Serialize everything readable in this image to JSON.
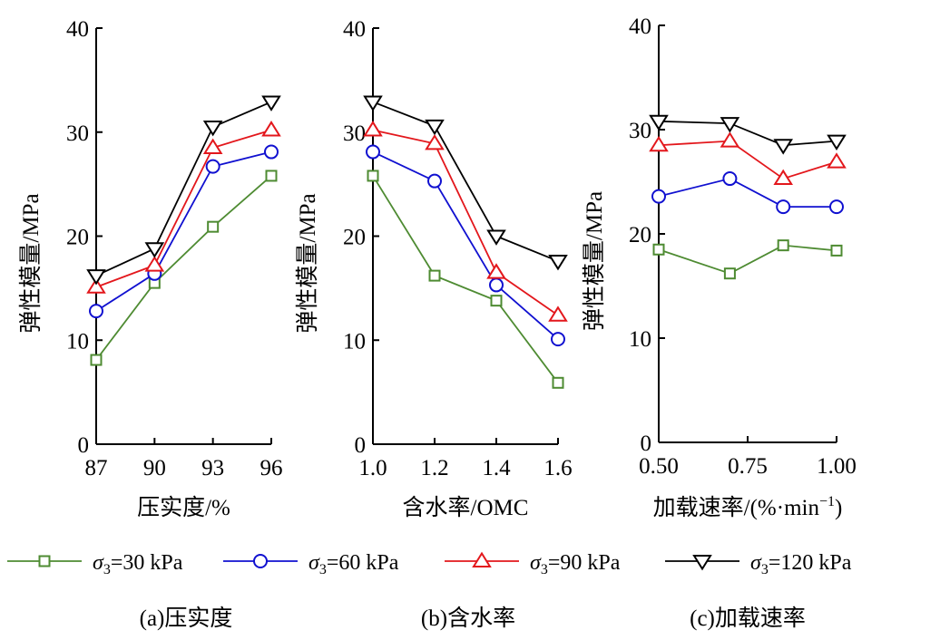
{
  "legend": [
    {
      "name": "σ3=30 kPa",
      "sym": "σ",
      "sub": "3",
      "rest": "=30 kPa",
      "color": "#4e8b32",
      "marker": "square"
    },
    {
      "name": "σ3=60 kPa",
      "sym": "σ",
      "sub": "3",
      "rest": "=60 kPa",
      "color": "#1010d0",
      "marker": "circle"
    },
    {
      "name": "σ3=90 kPa",
      "sym": "σ",
      "sub": "3",
      "rest": "=90 kPa",
      "color": "#e3171c",
      "marker": "triangle-up"
    },
    {
      "name": "σ3=120 kPa",
      "sym": "σ",
      "sub": "3",
      "rest": "=120 kPa",
      "color": "#000000",
      "marker": "triangle-down"
    }
  ],
  "chart_data": [
    {
      "type": "line",
      "caption": "(a)压实度",
      "xlabel": "压实度/%",
      "ylabel": "弹性模量/MPa",
      "x": [
        87,
        90,
        93,
        96
      ],
      "xticks": [
        "87",
        "90",
        "93",
        "96"
      ],
      "xtick_values": [
        87,
        90,
        93,
        96
      ],
      "xlim": [
        87,
        96
      ],
      "ylim": [
        0,
        40
      ],
      "yticks": [
        "0",
        "10",
        "20",
        "30",
        "40"
      ],
      "ytick_values": [
        0,
        10,
        20,
        30,
        40
      ],
      "grid": false,
      "series": [
        {
          "name": "σ3=30 kPa",
          "values": [
            8.1,
            15.5,
            20.9,
            25.8
          ]
        },
        {
          "name": "σ3=60 kPa",
          "values": [
            12.8,
            16.4,
            26.7,
            28.1
          ]
        },
        {
          "name": "σ3=90 kPa",
          "values": [
            15.1,
            17.2,
            28.5,
            30.2
          ]
        },
        {
          "name": "σ3=120 kPa",
          "values": [
            16.2,
            18.8,
            30.5,
            32.9
          ]
        }
      ]
    },
    {
      "type": "line",
      "caption": "(b)含水率",
      "xlabel": "含水率/OMC",
      "ylabel": "弹性模量/MPa",
      "x": [
        1.0,
        1.2,
        1.4,
        1.6
      ],
      "xticks": [
        "1.0",
        "1.2",
        "1.4",
        "1.6"
      ],
      "xtick_values": [
        1.0,
        1.2,
        1.4,
        1.6
      ],
      "xlim": [
        1.0,
        1.6
      ],
      "ylim": [
        0,
        40
      ],
      "yticks": [
        "0",
        "10",
        "20",
        "30",
        "40"
      ],
      "ytick_values": [
        0,
        10,
        20,
        30,
        40
      ],
      "grid": false,
      "series": [
        {
          "name": "σ3=30 kPa",
          "values": [
            25.8,
            16.2,
            13.8,
            5.9
          ]
        },
        {
          "name": "σ3=60 kPa",
          "values": [
            28.1,
            25.3,
            15.3,
            10.1
          ]
        },
        {
          "name": "σ3=90 kPa",
          "values": [
            30.2,
            28.9,
            16.5,
            12.4
          ]
        },
        {
          "name": "σ3=120 kPa",
          "values": [
            32.9,
            30.6,
            20.0,
            17.6
          ]
        }
      ]
    },
    {
      "type": "line",
      "caption": "(c)加载速率",
      "xlabel": "加载速率/(%·min",
      "xlabel_sup": "−1",
      "xlabel_end": ")",
      "ylabel": "弹性模量/MPa",
      "x": [
        0.5,
        0.7,
        0.85,
        1.0
      ],
      "xticks": [
        "0.50",
        "0.75",
        "1.00"
      ],
      "xtick_values": [
        0.5,
        0.75,
        1.0
      ],
      "xlim": [
        0.5,
        1.0
      ],
      "ylim": [
        0,
        40
      ],
      "yticks": [
        "0",
        "10",
        "20",
        "30",
        "40"
      ],
      "ytick_values": [
        0,
        10,
        20,
        30,
        40
      ],
      "grid": false,
      "series": [
        {
          "name": "σ3=30 kPa",
          "values": [
            18.5,
            16.2,
            18.9,
            18.4
          ]
        },
        {
          "name": "σ3=60 kPa",
          "values": [
            23.6,
            25.3,
            22.6,
            22.6
          ]
        },
        {
          "name": "σ3=90 kPa",
          "values": [
            28.5,
            28.9,
            25.3,
            26.9
          ]
        },
        {
          "name": "σ3=120 kPa",
          "values": [
            30.8,
            30.6,
            28.5,
            28.9
          ]
        }
      ]
    }
  ]
}
